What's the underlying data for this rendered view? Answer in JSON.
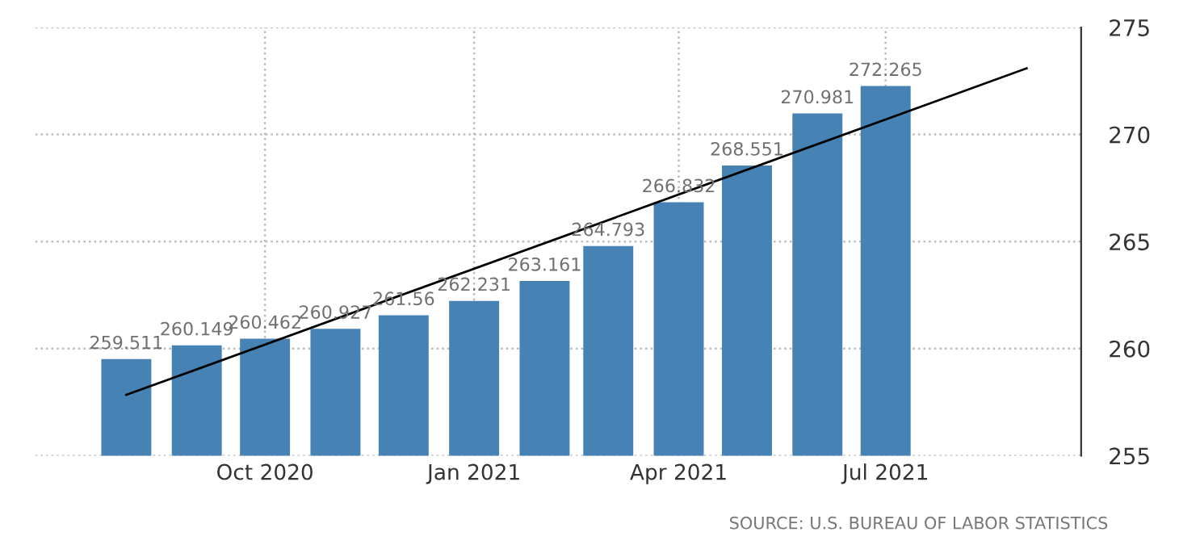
{
  "chart_data": {
    "type": "bar",
    "x": [
      "2020-08",
      "2020-09",
      "2020-10",
      "2020-11",
      "2020-12",
      "2021-01",
      "2021-02",
      "2021-03",
      "2021-04",
      "2021-05",
      "2021-06",
      "2021-07"
    ],
    "series": [
      {
        "color": "#4682b4",
        "values": [
          259.511,
          260.149,
          260.462,
          260.927,
          261.56,
          262.231,
          263.161,
          264.793,
          266.832,
          268.551,
          270.981,
          272.265
        ],
        "value_labels": [
          "259.511",
          "260.149",
          "260.462",
          "260.927",
          "261.56",
          "262.231",
          "263.161",
          "264.793",
          "266.832",
          "268.551",
          "270.981",
          "272.265"
        ]
      },
      {
        "type": "line",
        "color": "#000000",
        "x": [
          "2020-08-01",
          "2021-09-01"
        ],
        "values": [
          257.84,
          273.09
        ]
      }
    ],
    "xlim": [
      "2020-06-22",
      "2021-09-25"
    ],
    "xticks": [
      {
        "value": "2020-10",
        "label": "Oct 2020"
      },
      {
        "value": "2021-01",
        "label": "Jan 2021"
      },
      {
        "value": "2021-04",
        "label": "Apr 2021"
      },
      {
        "value": "2021-07",
        "label": "Jul 2021"
      }
    ],
    "ylim": [
      255,
      275
    ],
    "yticks": [
      255,
      260,
      265,
      270,
      275
    ],
    "grid": true,
    "legend": false,
    "annotations": [
      "SOURCE: U.S. BUREAU OF LABOR STATISTICS"
    ]
  }
}
